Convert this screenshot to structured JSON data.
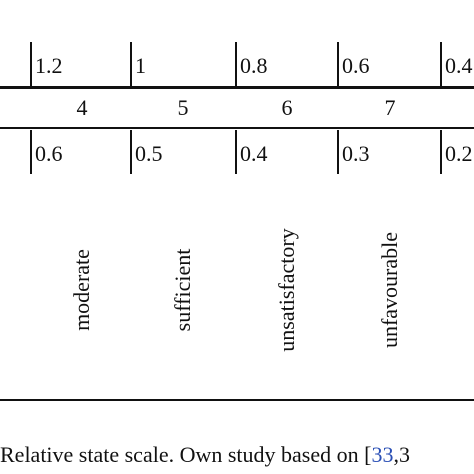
{
  "table": {
    "rows": [
      [
        "1.2",
        "1",
        "0.8",
        "0.6",
        "0.4"
      ],
      [
        "4",
        "5",
        "6",
        "7"
      ],
      [
        "0.6",
        "0.5",
        "0.4",
        "0.3",
        "0.2"
      ],
      [
        "moderate",
        "sufficient",
        "unsatisfactory",
        "unfavourable"
      ]
    ]
  },
  "caption": {
    "text": "Relative state scale. Own study based on [",
    "ref": "33",
    "rest": ",3"
  }
}
